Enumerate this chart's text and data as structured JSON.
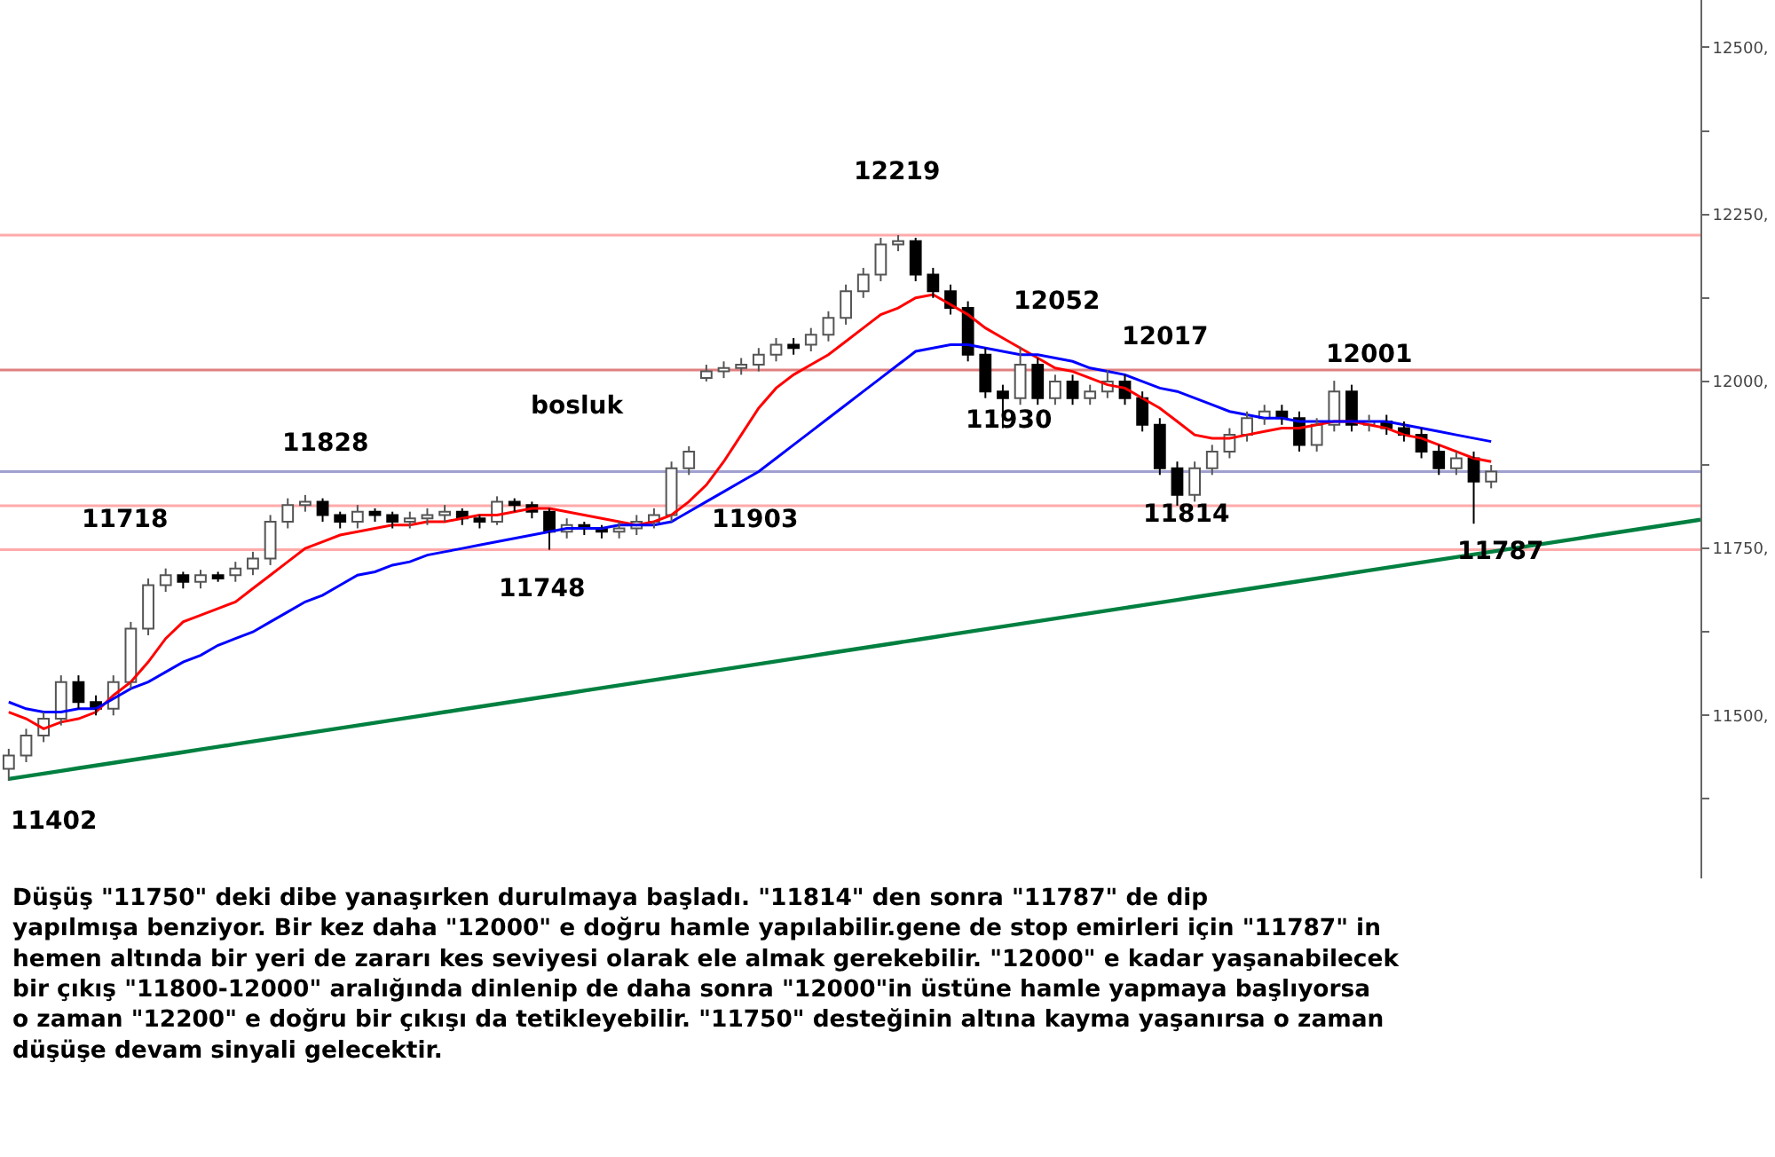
{
  "chart_data": {
    "type": "candlestick",
    "categories": [
      null,
      null,
      null,
      null,
      null,
      null,
      null,
      null,
      null,
      null,
      null,
      null,
      null,
      null,
      null,
      null,
      null,
      null,
      null,
      null,
      null,
      null,
      null,
      null,
      null,
      null,
      null,
      null,
      null,
      null,
      null,
      null,
      null,
      null,
      null,
      null,
      null,
      null,
      null,
      null,
      null,
      null,
      null,
      null,
      null,
      null,
      null,
      null,
      null,
      null,
      null,
      null,
      null,
      null,
      null,
      null,
      null,
      null,
      null,
      null,
      null,
      null,
      null,
      null,
      null,
      null,
      null,
      null,
      null,
      null,
      null,
      null,
      null,
      null,
      null,
      null,
      null,
      null,
      null,
      null,
      null,
      null,
      null,
      null,
      null,
      null,
      null,
      null,
      null,
      null,
      null,
      null,
      null,
      null,
      null,
      null,
      null,
      null
    ],
    "ohlc": [
      [
        11420,
        11450,
        11402,
        11440
      ],
      [
        11440,
        11480,
        11430,
        11470
      ],
      [
        11470,
        11505,
        11460,
        11495
      ],
      [
        11495,
        11560,
        11485,
        11550
      ],
      [
        11550,
        11560,
        11510,
        11520
      ],
      [
        11520,
        11530,
        11500,
        11510
      ],
      [
        11510,
        11560,
        11500,
        11550
      ],
      [
        11550,
        11640,
        11540,
        11630
      ],
      [
        11630,
        11705,
        11620,
        11695
      ],
      [
        11695,
        11720,
        11685,
        11710
      ],
      [
        11710,
        11715,
        11690,
        11700
      ],
      [
        11700,
        11718,
        11690,
        11710
      ],
      [
        11710,
        11715,
        11700,
        11705
      ],
      [
        11710,
        11730,
        11700,
        11720
      ],
      [
        11720,
        11745,
        11710,
        11735
      ],
      [
        11735,
        11800,
        11725,
        11790
      ],
      [
        11790,
        11825,
        11780,
        11815
      ],
      [
        11815,
        11830,
        11805,
        11820
      ],
      [
        11820,
        11825,
        11790,
        11800
      ],
      [
        11800,
        11805,
        11780,
        11790
      ],
      [
        11790,
        11815,
        11780,
        11805
      ],
      [
        11805,
        11810,
        11790,
        11800
      ],
      [
        11800,
        11805,
        11780,
        11790
      ],
      [
        11790,
        11805,
        11780,
        11795
      ],
      [
        11795,
        11810,
        11785,
        11800
      ],
      [
        11800,
        11815,
        11790,
        11805
      ],
      [
        11805,
        11810,
        11785,
        11795
      ],
      [
        11795,
        11800,
        11780,
        11790
      ],
      [
        11790,
        11828,
        11785,
        11820
      ],
      [
        11820,
        11825,
        11805,
        11815
      ],
      [
        11815,
        11820,
        11795,
        11805
      ],
      [
        11805,
        11810,
        11748,
        11775
      ],
      [
        11775,
        11795,
        11765,
        11785
      ],
      [
        11785,
        11790,
        11770,
        11780
      ],
      [
        11780,
        11785,
        11765,
        11775
      ],
      [
        11775,
        11790,
        11765,
        11780
      ],
      [
        11780,
        11800,
        11770,
        11790
      ],
      [
        11790,
        11810,
        11780,
        11800
      ],
      [
        11800,
        11880,
        11790,
        11870
      ],
      [
        11870,
        11903,
        11860,
        11895
      ],
      [
        12005,
        12025,
        12000,
        12015
      ],
      [
        12015,
        12030,
        12005,
        12020
      ],
      [
        12020,
        12035,
        12010,
        12025
      ],
      [
        12025,
        12050,
        12015,
        12040
      ],
      [
        12040,
        12065,
        12030,
        12055
      ],
      [
        12055,
        12065,
        12040,
        12050
      ],
      [
        12055,
        12080,
        12045,
        12070
      ],
      [
        12070,
        12105,
        12060,
        12095
      ],
      [
        12095,
        12145,
        12085,
        12135
      ],
      [
        12135,
        12170,
        12125,
        12160
      ],
      [
        12160,
        12215,
        12150,
        12205
      ],
      [
        12205,
        12219,
        12195,
        12210
      ],
      [
        12210,
        12215,
        12150,
        12160
      ],
      [
        12160,
        12170,
        12125,
        12135
      ],
      [
        12135,
        12145,
        12100,
        12110
      ],
      [
        12110,
        12120,
        12030,
        12040
      ],
      [
        12040,
        12050,
        11975,
        11985
      ],
      [
        11985,
        11995,
        11930,
        11975
      ],
      [
        11975,
        12052,
        11965,
        12025
      ],
      [
        12025,
        12035,
        11965,
        11975
      ],
      [
        11975,
        12010,
        11965,
        12000
      ],
      [
        12000,
        12010,
        11965,
        11975
      ],
      [
        11975,
        11995,
        11965,
        11985
      ],
      [
        11985,
        12017,
        11975,
        12000
      ],
      [
        12000,
        12010,
        11965,
        11975
      ],
      [
        11975,
        11985,
        11925,
        11935
      ],
      [
        11935,
        11945,
        11860,
        11870
      ],
      [
        11870,
        11880,
        11814,
        11830
      ],
      [
        11830,
        11880,
        11820,
        11870
      ],
      [
        11870,
        11905,
        11860,
        11895
      ],
      [
        11895,
        11930,
        11885,
        11920
      ],
      [
        11920,
        11955,
        11910,
        11945
      ],
      [
        11945,
        11965,
        11935,
        11955
      ],
      [
        11955,
        11965,
        11935,
        11945
      ],
      [
        11945,
        11955,
        11895,
        11905
      ],
      [
        11905,
        11945,
        11895,
        11935
      ],
      [
        11935,
        12001,
        11925,
        11985
      ],
      [
        11985,
        11995,
        11925,
        11935
      ],
      [
        11935,
        11950,
        11925,
        11940
      ],
      [
        11940,
        11950,
        11920,
        11930
      ],
      [
        11930,
        11940,
        11910,
        11920
      ],
      [
        11920,
        11930,
        11885,
        11895
      ],
      [
        11895,
        11905,
        11860,
        11870
      ],
      [
        11870,
        11895,
        11860,
        11885
      ],
      [
        11885,
        11895,
        11787,
        11850
      ],
      [
        11850,
        11875,
        11840,
        11865
      ],
      null,
      null,
      null,
      null,
      null,
      null,
      null,
      null,
      null,
      null,
      null,
      null
    ],
    "series": [
      {
        "type": "line",
        "color": "#ff0000",
        "values": [
          11505,
          11495,
          11480,
          11490,
          11495,
          11505,
          11530,
          11550,
          11580,
          11615,
          11640,
          11650,
          11660,
          11670,
          11690,
          11710,
          11730,
          11750,
          11760,
          11770,
          11775,
          11780,
          11785,
          11785,
          11790,
          11790,
          11795,
          11800,
          11800,
          11805,
          11810,
          11810,
          11805,
          11800,
          11795,
          11790,
          11785,
          11790,
          11800,
          11820,
          11845,
          11880,
          11920,
          11960,
          11990,
          12010,
          12025,
          12040,
          12060,
          12080,
          12100,
          12110,
          12125,
          12130,
          12115,
          12100,
          12080,
          12065,
          12050,
          12035,
          12020,
          12015,
          12005,
          11995,
          11990,
          11975,
          11960,
          11940,
          11920,
          11915,
          11915,
          11920,
          11925,
          11930,
          11930,
          11935,
          11940,
          11940,
          11935,
          11930,
          11920,
          11915,
          11905,
          11895,
          11885,
          11880,
          null,
          null,
          null,
          null,
          null,
          null,
          null,
          null,
          null,
          null,
          null,
          null
        ]
      },
      {
        "type": "line",
        "color": "#0000ff",
        "values": [
          11520,
          11510,
          11505,
          11505,
          11510,
          11510,
          11525,
          11540,
          11550,
          11565,
          11580,
          11590,
          11605,
          11615,
          11625,
          11640,
          11655,
          11670,
          11680,
          11695,
          11710,
          11715,
          11725,
          11730,
          11740,
          11745,
          11750,
          11755,
          11760,
          11765,
          11770,
          11775,
          11780,
          11780,
          11780,
          11785,
          11785,
          11785,
          11790,
          11805,
          11820,
          11835,
          11850,
          11865,
          11885,
          11905,
          11925,
          11945,
          11965,
          11985,
          12005,
          12025,
          12045,
          12050,
          12055,
          12055,
          12050,
          12045,
          12040,
          12040,
          12035,
          12030,
          12020,
          12015,
          12010,
          12000,
          11990,
          11985,
          11975,
          11965,
          11955,
          11950,
          11945,
          11945,
          11940,
          11940,
          11940,
          11940,
          11940,
          11940,
          11935,
          11930,
          11925,
          11920,
          11915,
          11910,
          null,
          null,
          null,
          null,
          null,
          null,
          null,
          null,
          null,
          null,
          null,
          null
        ]
      },
      {
        "type": "line",
        "color": "#008040",
        "values": [
          11405,
          11409,
          11413,
          11417,
          11421,
          11425,
          11429,
          11433,
          11437,
          11441,
          11445,
          11449,
          11453,
          11457,
          11461,
          11465,
          11469,
          11473,
          11477,
          11481,
          11485,
          11489,
          11493,
          11497,
          11501,
          11505,
          11509,
          11513,
          11517,
          11521,
          11525,
          11529,
          11533,
          11537,
          11541,
          11545,
          11549,
          11553,
          11557,
          11561,
          11565,
          11569,
          11573,
          11577,
          11581,
          11585,
          11589,
          11593,
          11597,
          11601,
          11605,
          11609,
          11613,
          11617,
          11621,
          11625,
          11629,
          11633,
          11637,
          11641,
          11645,
          11649,
          11653,
          11657,
          11661,
          11665,
          11669,
          11673,
          11677,
          11681,
          11685,
          11689,
          11693,
          11697,
          11701,
          11705,
          11709,
          11713,
          11717,
          11721,
          11725,
          11729,
          11733,
          11737,
          11741,
          11745,
          11749,
          11753,
          11757,
          11761,
          11765,
          11769,
          11773,
          11777,
          11781,
          11785,
          11789,
          11793
        ]
      }
    ],
    "ylim": [
      11256,
      12571
    ],
    "yticks": [
      {
        "value": 11375,
        "label": null
      },
      {
        "value": 11500,
        "label": "11500,"
      },
      {
        "value": 11625,
        "label": null
      },
      {
        "value": 11750,
        "label": "11750,"
      },
      {
        "value": 11875,
        "label": null
      },
      {
        "value": 12000,
        "label": "12000,"
      },
      {
        "value": 12125,
        "label": null
      },
      {
        "value": 12250,
        "label": "12250,"
      },
      {
        "value": 12375,
        "label": null
      },
      {
        "value": 12500,
        "label": "12500,"
      }
    ],
    "tick_labels": "y",
    "ref_lines": [
      {
        "axis": "y",
        "value": 12219,
        "color": "#ffaaaa"
      },
      {
        "axis": "y",
        "value": 12017,
        "color": "#e08080"
      },
      {
        "axis": "y",
        "value": 11865,
        "color": "#a0a0d0"
      },
      {
        "axis": "y",
        "value": 11814,
        "color": "#ffaaaa"
      },
      {
        "axis": "y",
        "value": 11748,
        "color": "#ffaaaa"
      }
    ],
    "annotations": [
      "11402",
      "11718",
      "11828",
      "11748",
      "11903",
      "12219",
      "11930",
      "12052",
      "12017",
      "11814",
      "12001",
      "11787",
      "bosluk",
      "Düşüş \"11750\" deki dibe yanaşırken durulmaya başladı. \"11814\" den sonra \"11787\" de dip\nyapılmışa benziyor. Bir kez daha \"12000\" e doğru hamle yapılabilir.gene de stop emirleri için \"11787\" in\nhemen altında bir yeri de zararı kes seviyesi olarak ele almak gerekebilir. \"12000\" e kadar yaşanabilecek\nbir çıkış \"11800-12000\" aralığında dinlenip de daha sonra \"12000\"in üstüne hamle yapmaya başlıyorsa\no zaman \"12200\" e doğru bir çıkışı da tetikleyebilir. \"11750\" desteğinin altına kayma yaşanırsa o zaman\ndüşüşe devam sinyali gelecektir."
    ]
  }
}
